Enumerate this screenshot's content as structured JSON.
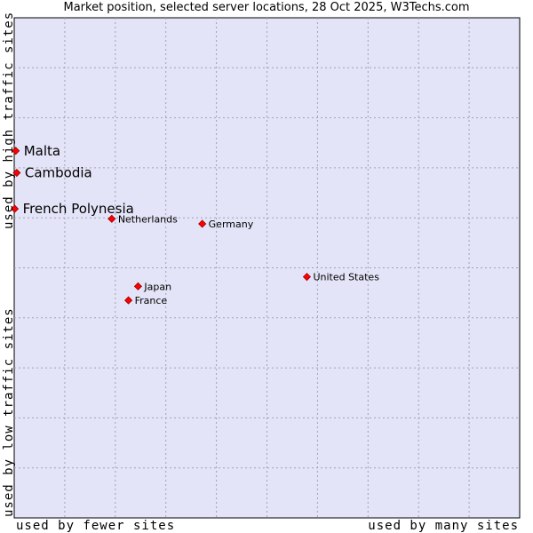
{
  "chart_data": {
    "type": "scatter",
    "title": "Market position, selected server locations, 28 Oct 2025, W3Techs.com",
    "xlabel_low": "used by fewer sites",
    "xlabel_high": "used by many sites",
    "ylabel_low": "used by low traffic sites",
    "ylabel_high": "used by high traffic sites",
    "xlim": [
      0,
      10
    ],
    "ylim": [
      0,
      10
    ],
    "grid": true,
    "points": [
      {
        "name": "Malta",
        "x": 0.03,
        "y": 7.34,
        "highlight": true
      },
      {
        "name": "Cambodia",
        "x": 0.05,
        "y": 6.9,
        "highlight": true
      },
      {
        "name": "French Polynesia",
        "x": 0.01,
        "y": 6.18,
        "highlight": true
      },
      {
        "name": "Netherlands",
        "x": 1.93,
        "y": 5.98,
        "highlight": false
      },
      {
        "name": "Germany",
        "x": 3.72,
        "y": 5.88,
        "highlight": false
      },
      {
        "name": "United States",
        "x": 5.79,
        "y": 4.82,
        "highlight": false
      },
      {
        "name": "Japan",
        "x": 2.45,
        "y": 4.63,
        "highlight": false
      },
      {
        "name": "France",
        "x": 2.26,
        "y": 4.35,
        "highlight": false
      }
    ]
  },
  "colors": {
    "plot_bg": "#e4e4f8",
    "grid": "#a0a0b8",
    "marker": "#ff0000",
    "marker_stroke": "#990000"
  }
}
